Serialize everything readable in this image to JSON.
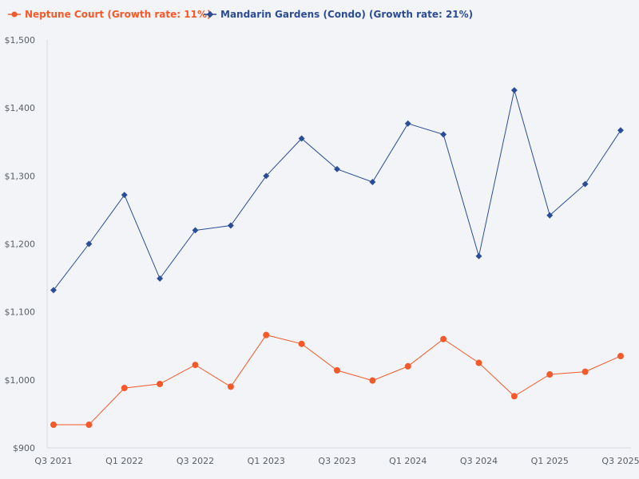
{
  "chart_data": {
    "type": "line",
    "title": "",
    "xlabel": "",
    "ylabel": "",
    "ylim": [
      900,
      1500
    ],
    "y_ticks": [
      900,
      1000,
      1100,
      1200,
      1300,
      1400,
      1500
    ],
    "y_tick_labels": [
      "$900",
      "$1,000",
      "$1,100",
      "$1,200",
      "$1,300",
      "$1,400",
      "$1,500"
    ],
    "categories": [
      "Q3 2021",
      "Q4 2021",
      "Q1 2022",
      "Q2 2022",
      "Q3 2022",
      "Q4 2022",
      "Q1 2023",
      "Q2 2023",
      "Q3 2023",
      "Q4 2023",
      "Q1 2024",
      "Q2 2024",
      "Q3 2024",
      "Q4 2024",
      "Q1 2025",
      "Q2 2025",
      "Q3 2025"
    ],
    "x_tick_labels": [
      {
        "index": 0,
        "label": "Q3 2021"
      },
      {
        "index": 2,
        "label": "Q1 2022"
      },
      {
        "index": 4,
        "label": "Q3 2022"
      },
      {
        "index": 6,
        "label": "Q1 2023"
      },
      {
        "index": 8,
        "label": "Q3 2023"
      },
      {
        "index": 10,
        "label": "Q1 2024"
      },
      {
        "index": 12,
        "label": "Q3 2024"
      },
      {
        "index": 14,
        "label": "Q1 2025"
      },
      {
        "index": 16,
        "label": "Q3 2025"
      }
    ],
    "legend_position": "top-left",
    "grid": false,
    "series": [
      {
        "name": "Neptune Court (Growth rate: 11%)",
        "color": "#f4592a",
        "marker": "circle",
        "values": [
          934,
          934,
          988,
          994,
          1022,
          990,
          1066,
          1053,
          1014,
          999,
          1020,
          1060,
          1025,
          976,
          1008,
          1012,
          1035
        ]
      },
      {
        "name": "Mandarin Gardens (Condo) (Growth rate: 21%)",
        "color": "#2b4c96",
        "marker": "diamond",
        "values": [
          1132,
          1200,
          1272,
          1149,
          1220,
          1227,
          1300,
          1355,
          1310,
          1291,
          1377,
          1361,
          1182,
          1426,
          1242,
          1288,
          1367
        ]
      }
    ]
  }
}
